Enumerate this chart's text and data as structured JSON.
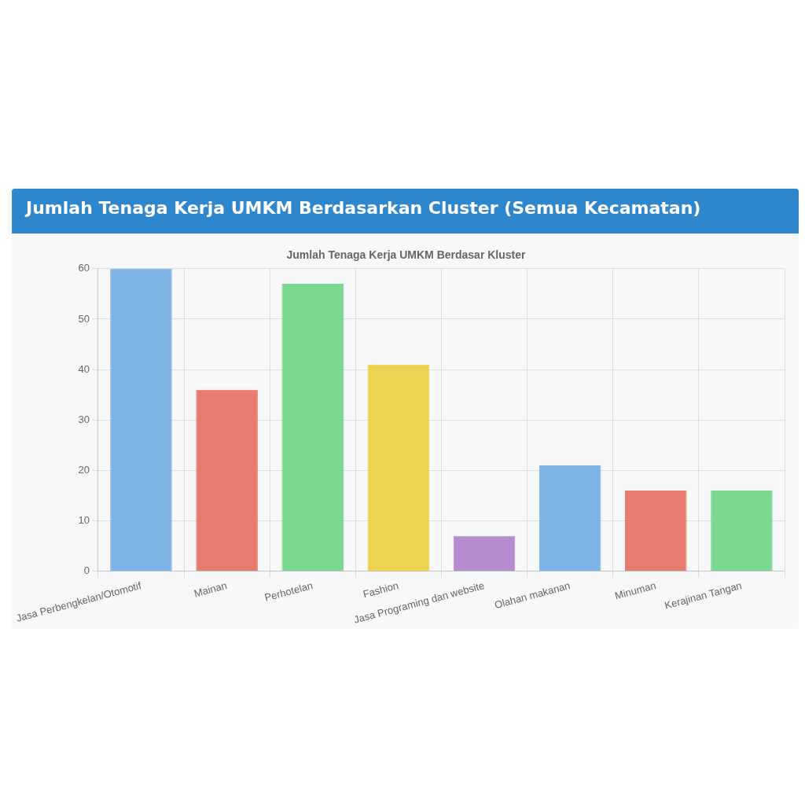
{
  "chart_data": {
    "type": "bar",
    "title": "Jumlah Tenaga Kerja UMKM Berdasarkan Cluster (Semua Kecamatan)",
    "subtitle": "Jumlah Tenaga Kerja UMKM Berdasar Kluster",
    "categories": [
      "Jasa Perbengkelan/Otomotif",
      "Mainan",
      "Perhotelan",
      "Fashion",
      "Jasa Programing dan website",
      "Olahan makanan",
      "Minuman",
      "Kerajinan Tangan"
    ],
    "values": [
      60,
      36,
      57,
      41,
      7,
      21,
      16,
      16
    ],
    "colors": [
      "#7fb3e6",
      "#e67c70",
      "#7dd88f",
      "#eed350",
      "#b48ccf",
      "#7fb3e6",
      "#e67c70",
      "#7dd88f"
    ],
    "ylim": [
      0,
      60
    ],
    "yticks": [
      0,
      10,
      20,
      30,
      40,
      50,
      60
    ],
    "grid": true,
    "legend": false
  }
}
